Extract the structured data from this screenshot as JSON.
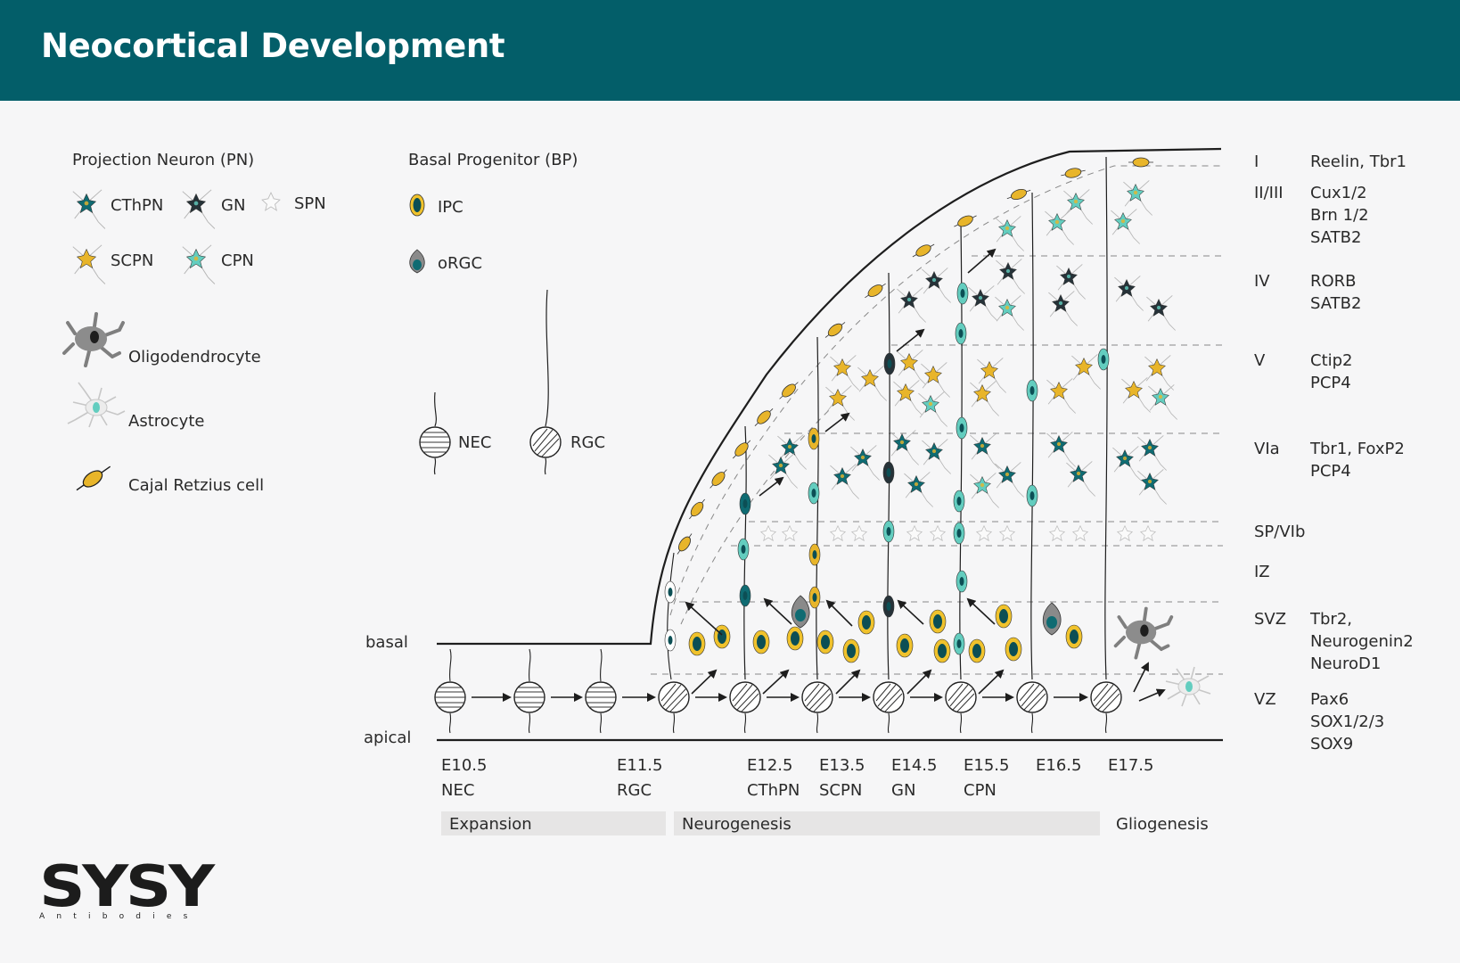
{
  "title": "Neocortical Development",
  "legend": {
    "pn_header": "Projection Neuron (PN)",
    "pn_types": [
      {
        "label": "CThPN",
        "color": "#0f6b72"
      },
      {
        "label": "GN",
        "color": "#263238"
      },
      {
        "label": "SPN",
        "color": "#dcdcdc"
      },
      {
        "label": "SCPN",
        "color": "#e8b52a"
      },
      {
        "label": "CPN",
        "color": "#63cdbf"
      }
    ],
    "oligodendrocyte": "Oligodendrocyte",
    "astrocyte": "Astrocyte",
    "cajal": "Cajal Retzius cell",
    "bp_header": "Basal Progenitor (BP)",
    "ipc": "IPC",
    "orgc": "oRGC",
    "nec": "NEC",
    "rgc": "RGC"
  },
  "diagram": {
    "basal": "basal",
    "apical": "apical",
    "stages": [
      {
        "age": "E10.5",
        "name": "NEC"
      },
      {
        "age": "E11.5",
        "name": "RGC"
      },
      {
        "age": "E12.5",
        "name": "CThPN"
      },
      {
        "age": "E13.5",
        "name": "SCPN"
      },
      {
        "age": "E14.5",
        "name": "GN"
      },
      {
        "age": "E15.5",
        "name": "CPN"
      },
      {
        "age": "E16.5",
        "name": ""
      },
      {
        "age": "E17.5",
        "name": ""
      }
    ],
    "phases": [
      "Expansion",
      "Neurogenesis",
      "Gliogenesis"
    ]
  },
  "layers": [
    {
      "layer": "I",
      "markers": [
        "Reelin, Tbr1"
      ]
    },
    {
      "layer": "II/III",
      "markers": [
        "Cux1/2",
        "Brn 1/2",
        "SATB2"
      ]
    },
    {
      "layer": "IV",
      "markers": [
        "RORB",
        "SATB2"
      ]
    },
    {
      "layer": "V",
      "markers": [
        "Ctip2",
        "PCP4"
      ]
    },
    {
      "layer": "VIa",
      "markers": [
        "Tbr1, FoxP2",
        "PCP4"
      ]
    },
    {
      "layer": "SP/VIb",
      "markers": []
    },
    {
      "layer": "IZ",
      "markers": []
    },
    {
      "layer": "SVZ",
      "markers": [
        "Tbr2,",
        "Neurogenin2",
        "NeuroD1"
      ]
    },
    {
      "layer": "VZ",
      "markers": [
        "Pax6",
        "SOX1/2/3",
        "SOX9"
      ]
    }
  ],
  "colors": {
    "header": "#035e69",
    "cthpn": "#0f6b72",
    "gn": "#263238",
    "scpn": "#e8b52a",
    "cpn": "#63cdbf",
    "ipc_fill": "#f0c22c",
    "oligo": "#8a8a8a"
  },
  "logo": {
    "word": "SYSY",
    "sub": "Antibodies"
  }
}
